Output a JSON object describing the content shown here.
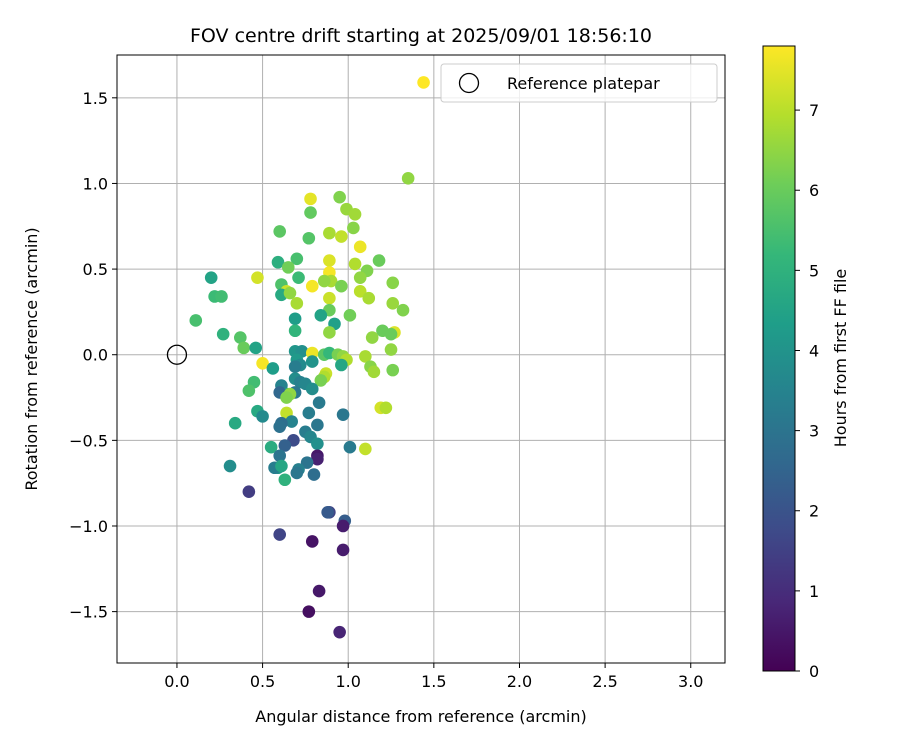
{
  "chart_data": {
    "type": "scatter",
    "title": "FOV centre drift starting at 2025/09/01 18:56:10",
    "xlabel": "Angular distance from reference (arcmin)",
    "ylabel": "Rotation from reference (arcmin)",
    "xlim": [
      -0.35,
      3.2
    ],
    "ylim": [
      -1.8,
      1.75
    ],
    "x_ticks": [
      0.0,
      0.5,
      1.0,
      1.5,
      2.0,
      2.5,
      3.0
    ],
    "x_tick_labels": [
      "0.0",
      "0.5",
      "1.0",
      "1.5",
      "2.0",
      "2.5",
      "3.0"
    ],
    "y_ticks": [
      -1.5,
      -1.0,
      -0.5,
      0.0,
      0.5,
      1.0,
      1.5
    ],
    "y_tick_labels": [
      "−1.5",
      "−1.0",
      "−0.5",
      "0.0",
      "0.5",
      "1.0",
      "1.5"
    ],
    "grid": true,
    "legend": {
      "placement": "top-right",
      "label": "Reference platepar",
      "point_color": "#fde725"
    },
    "reference_point": {
      "x": 0.0,
      "y": 0.0
    },
    "colorbar": {
      "label": "Hours from first FF file",
      "range": [
        0,
        7.8
      ],
      "ticks": [
        0,
        1,
        2,
        3,
        4,
        5,
        6,
        7
      ],
      "tick_labels": [
        "0",
        "1",
        "2",
        "3",
        "4",
        "5",
        "6",
        "7"
      ],
      "colormap": "viridis"
    },
    "series": [
      {
        "name": "FOV centre drift",
        "points": [
          [
            1.44,
            1.59,
            7.8
          ],
          [
            1.35,
            1.03,
            6.5
          ],
          [
            0.95,
            0.92,
            6.3
          ],
          [
            0.78,
            0.91,
            7.5
          ],
          [
            0.99,
            0.85,
            6.6
          ],
          [
            1.04,
            0.82,
            6.7
          ],
          [
            0.78,
            0.83,
            5.9
          ],
          [
            1.03,
            0.74,
            6.4
          ],
          [
            0.6,
            0.72,
            5.8
          ],
          [
            0.89,
            0.71,
            6.8
          ],
          [
            0.77,
            0.68,
            5.7
          ],
          [
            0.96,
            0.69,
            7.1
          ],
          [
            1.07,
            0.63,
            7.6
          ],
          [
            0.7,
            0.56,
            5.5
          ],
          [
            0.59,
            0.54,
            4.9
          ],
          [
            0.89,
            0.55,
            7.4
          ],
          [
            1.18,
            0.55,
            6.0
          ],
          [
            1.04,
            0.53,
            6.9
          ],
          [
            0.65,
            0.51,
            6.1
          ],
          [
            0.89,
            0.48,
            7.7
          ],
          [
            1.11,
            0.49,
            6.3
          ],
          [
            0.2,
            0.45,
            4.5
          ],
          [
            0.71,
            0.45,
            5.3
          ],
          [
            1.07,
            0.45,
            6.5
          ],
          [
            0.9,
            0.43,
            6.8
          ],
          [
            0.96,
            0.4,
            6.2
          ],
          [
            0.47,
            0.45,
            7.3
          ],
          [
            0.61,
            0.41,
            5.6
          ],
          [
            0.86,
            0.43,
            6.5
          ],
          [
            0.79,
            0.4,
            7.7
          ],
          [
            1.26,
            0.42,
            6.4
          ],
          [
            0.64,
            0.37,
            7.2
          ],
          [
            0.61,
            0.35,
            4.7
          ],
          [
            0.66,
            0.36,
            6.5
          ],
          [
            1.07,
            0.37,
            7.0
          ],
          [
            0.22,
            0.34,
            5.3
          ],
          [
            0.26,
            0.34,
            5.4
          ],
          [
            1.12,
            0.33,
            6.8
          ],
          [
            0.89,
            0.33,
            7.2
          ],
          [
            0.7,
            0.3,
            6.8
          ],
          [
            1.26,
            0.3,
            6.6
          ],
          [
            1.32,
            0.26,
            6.3
          ],
          [
            0.89,
            0.26,
            6.0
          ],
          [
            0.84,
            0.23,
            4.5
          ],
          [
            1.01,
            0.23,
            6.1
          ],
          [
            0.11,
            0.2,
            5.5
          ],
          [
            0.69,
            0.21,
            4.3
          ],
          [
            0.92,
            0.18,
            4.4
          ],
          [
            1.2,
            0.14,
            6.0
          ],
          [
            0.69,
            0.14,
            5.1
          ],
          [
            0.89,
            0.13,
            6.5
          ],
          [
            0.27,
            0.12,
            5.0
          ],
          [
            1.27,
            0.13,
            7.4
          ],
          [
            1.25,
            0.12,
            6.0
          ],
          [
            1.14,
            0.1,
            6.5
          ],
          [
            0.37,
            0.1,
            5.7
          ],
          [
            0.39,
            0.04,
            6.0
          ],
          [
            0.46,
            0.04,
            4.5
          ],
          [
            1.25,
            0.03,
            6.5
          ],
          [
            0.69,
            0.02,
            4.1
          ],
          [
            0.73,
            0.02,
            3.9
          ],
          [
            0.79,
            0.01,
            7.6
          ],
          [
            0.86,
            0.0,
            5.8
          ],
          [
            0.89,
            0.01,
            5.2
          ],
          [
            0.94,
            0.0,
            6.2
          ],
          [
            0.97,
            -0.01,
            6.5
          ],
          [
            0.99,
            -0.03,
            6.9
          ],
          [
            1.1,
            -0.01,
            6.8
          ],
          [
            0.7,
            -0.03,
            4.2
          ],
          [
            0.79,
            -0.04,
            4.0
          ],
          [
            0.5,
            -0.05,
            7.7
          ],
          [
            0.72,
            -0.06,
            3.7
          ],
          [
            0.96,
            -0.06,
            4.6
          ],
          [
            1.13,
            -0.07,
            6.4
          ],
          [
            0.56,
            -0.08,
            4.3
          ],
          [
            0.69,
            -0.07,
            3.3
          ],
          [
            1.15,
            -0.1,
            6.7
          ],
          [
            1.26,
            -0.09,
            6.2
          ],
          [
            0.87,
            -0.11,
            7.2
          ],
          [
            0.86,
            -0.13,
            6.9
          ],
          [
            0.69,
            -0.14,
            3.8
          ],
          [
            0.72,
            -0.16,
            3.4
          ],
          [
            0.84,
            -0.15,
            6.2
          ],
          [
            0.45,
            -0.16,
            5.4
          ],
          [
            0.42,
            -0.21,
            5.6
          ],
          [
            0.75,
            -0.17,
            3.6
          ],
          [
            0.61,
            -0.18,
            3.5
          ],
          [
            0.79,
            -0.2,
            3.8
          ],
          [
            0.64,
            -0.23,
            4.2
          ],
          [
            0.6,
            -0.22,
            2.6
          ],
          [
            0.69,
            -0.22,
            3.1
          ],
          [
            0.66,
            -0.23,
            6.5
          ],
          [
            0.64,
            -0.25,
            6.3
          ],
          [
            0.83,
            -0.28,
            3.2
          ],
          [
            1.19,
            -0.31,
            7.3
          ],
          [
            1.22,
            -0.31,
            6.9
          ],
          [
            0.47,
            -0.33,
            4.7
          ],
          [
            0.64,
            -0.34,
            7.1
          ],
          [
            0.77,
            -0.34,
            3.3
          ],
          [
            0.97,
            -0.35,
            3.1
          ],
          [
            0.5,
            -0.36,
            3.7
          ],
          [
            0.67,
            -0.39,
            3.5
          ],
          [
            0.61,
            -0.4,
            2.8
          ],
          [
            0.82,
            -0.41,
            3.1
          ],
          [
            0.34,
            -0.4,
            4.7
          ],
          [
            0.6,
            -0.42,
            2.9
          ],
          [
            0.75,
            -0.45,
            3.3
          ],
          [
            0.78,
            -0.48,
            3.6
          ],
          [
            0.68,
            -0.5,
            1.8
          ],
          [
            0.82,
            -0.52,
            3.9
          ],
          [
            1.1,
            -0.55,
            7.1
          ],
          [
            1.01,
            -0.54,
            3.2
          ],
          [
            0.55,
            -0.54,
            4.8
          ],
          [
            0.63,
            -0.53,
            2.4
          ],
          [
            0.82,
            -0.59,
            0.5
          ],
          [
            0.82,
            -0.61,
            0.7
          ],
          [
            0.6,
            -0.59,
            3.0
          ],
          [
            0.59,
            -0.66,
            4.0
          ],
          [
            0.57,
            -0.66,
            3.3
          ],
          [
            0.76,
            -0.63,
            3.0
          ],
          [
            0.71,
            -0.67,
            3.4
          ],
          [
            0.31,
            -0.65,
            3.8
          ],
          [
            0.61,
            -0.65,
            4.6
          ],
          [
            0.7,
            -0.69,
            3.1
          ],
          [
            0.8,
            -0.7,
            2.8
          ],
          [
            0.63,
            -0.73,
            5.0
          ],
          [
            0.42,
            -0.8,
            1.4
          ],
          [
            0.89,
            -0.92,
            1.6
          ],
          [
            0.88,
            -0.92,
            2.2
          ],
          [
            0.98,
            -0.97,
            2.3
          ],
          [
            0.97,
            -1.0,
            0.6
          ],
          [
            0.6,
            -1.05,
            1.6
          ],
          [
            0.79,
            -1.09,
            0.4
          ],
          [
            0.97,
            -1.14,
            0.6
          ],
          [
            0.83,
            -1.38,
            0.5
          ],
          [
            0.77,
            -1.5,
            0.3
          ],
          [
            0.95,
            -1.62,
            0.8
          ]
        ]
      }
    ]
  }
}
